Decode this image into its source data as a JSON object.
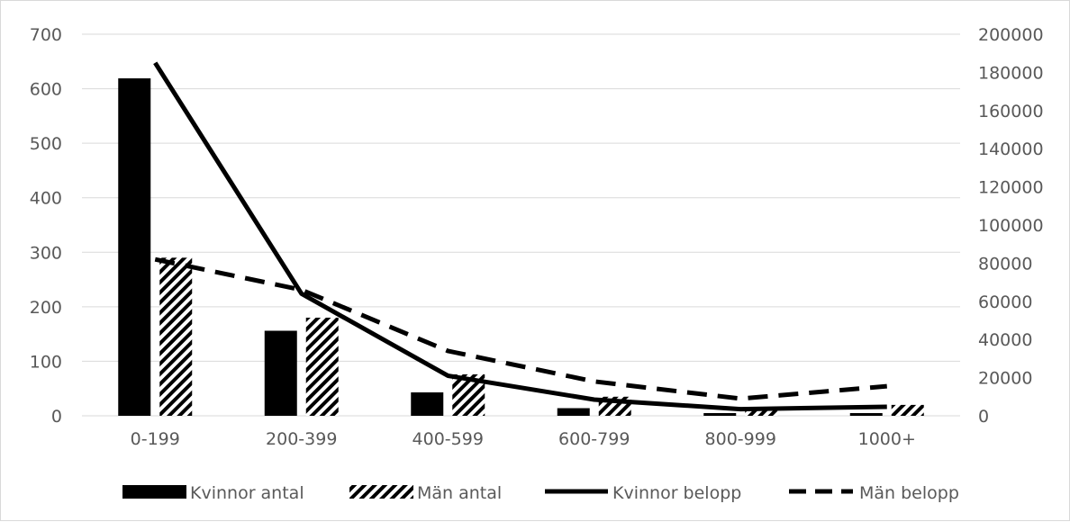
{
  "chart_data": {
    "type": "bar",
    "categories": [
      "0-199",
      "200-399",
      "400-599",
      "600-799",
      "800-999",
      "1000+"
    ],
    "series": [
      {
        "name": "Kvinnor antal",
        "kind": "bar",
        "axis": "left",
        "style": "solid",
        "values": [
          619,
          156,
          43,
          14,
          5,
          5
        ]
      },
      {
        "name": "Män antal",
        "kind": "bar",
        "axis": "left",
        "style": "hatched",
        "values": [
          290,
          180,
          76,
          35,
          12,
          20
        ]
      },
      {
        "name": "Kvinnor belopp",
        "kind": "line",
        "axis": "right",
        "style": "solid",
        "values": [
          185000,
          64000,
          21000,
          8500,
          3500,
          4700
        ]
      },
      {
        "name": "Män belopp",
        "kind": "line",
        "axis": "right",
        "style": "dashed",
        "values": [
          82000,
          66000,
          34000,
          18000,
          9000,
          15500
        ]
      }
    ],
    "y_left": {
      "min": 0,
      "max": 700,
      "ticks": [
        "0",
        "100",
        "200",
        "300",
        "400",
        "500",
        "600",
        "700"
      ]
    },
    "y_right": {
      "min": 0,
      "max": 200000,
      "ticks": [
        "0",
        "20000",
        "40000",
        "60000",
        "80000",
        "100000",
        "120000",
        "140000",
        "160000",
        "180000",
        "200000"
      ]
    },
    "grid": true,
    "legend_position": "bottom",
    "title": "",
    "xlabel": "",
    "ylabel": ""
  }
}
